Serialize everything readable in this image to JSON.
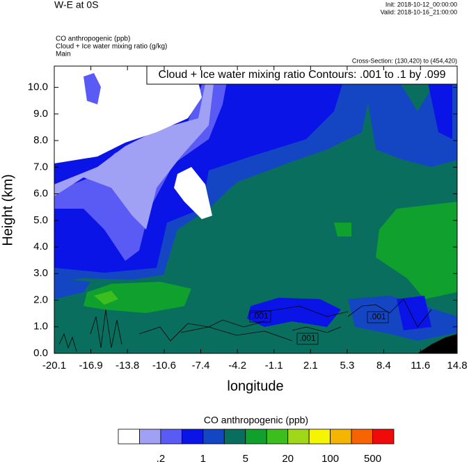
{
  "title": "W-E at 0S",
  "init": "Init: 2018-10-12_00:00:00",
  "valid": "Valid: 2018-10-16_21:00:00",
  "fields": [
    "CO anthropogenic   (ppb)",
    "Cloud + Ice water mixing ratio   (g/kg)",
    "Main"
  ],
  "cross_section": "Cross-Section: (130,420) to (454,420)",
  "contour_info": "Cloud + Ice water mixing ratio Contours: .001 to .1 by .099",
  "contour_labels": [
    ".001",
    ".001",
    ".001"
  ],
  "chart_data": {
    "type": "contour",
    "xlabel": "longitude",
    "ylabel": "Height (km)",
    "xlim": [
      -20.1,
      14.8
    ],
    "ylim": [
      0,
      10.8
    ],
    "xticks": [
      -20.1,
      {
        "value": -16.93,
        "label": "-16.9"
      },
      {
        "value": -13.76,
        "label": "-13.8"
      },
      {
        "value": -10.58,
        "label": "-10.6"
      },
      {
        "value": -7.41,
        "label": "-7.4"
      },
      {
        "value": -4.24,
        "label": "-4.2"
      },
      {
        "value": -1.07,
        "label": "-1.1"
      },
      2.1,
      {
        "value": 5.27,
        "label": "5.3"
      },
      {
        "value": 8.44,
        "label": "8.4"
      },
      {
        "value": 11.62,
        "label": "11.6"
      },
      14.8
    ],
    "yticks": [
      {
        "value": 0,
        "label": "0.0"
      },
      {
        "value": 1,
        "label": "1.0"
      },
      {
        "value": 2,
        "label": "2.0"
      },
      {
        "value": 3,
        "label": "3.0"
      },
      {
        "value": 4,
        "label": "4.0"
      },
      {
        "value": 5,
        "label": "5.0"
      },
      {
        "value": 6,
        "label": "6.0"
      },
      {
        "value": 7,
        "label": "7.0"
      },
      {
        "value": 8,
        "label": "8.0"
      },
      {
        "value": 9,
        "label": "9.0"
      },
      {
        "value": 10,
        "label": "10.0"
      }
    ],
    "colorbar": {
      "title": "CO anthropogenic  (ppb)",
      "colors": [
        "#ffffff",
        "#a0a0f5",
        "#5a5af5",
        "#0a14e6",
        "#1446c3",
        "#0a6e5f",
        "#0fa02d",
        "#3cbe1e",
        "#a0d719",
        "#f5f500",
        "#f5b400",
        "#f56400",
        "#f00a0a"
      ],
      "labels": [
        ".2",
        "1",
        "5",
        "20",
        "100",
        "500"
      ]
    }
  }
}
